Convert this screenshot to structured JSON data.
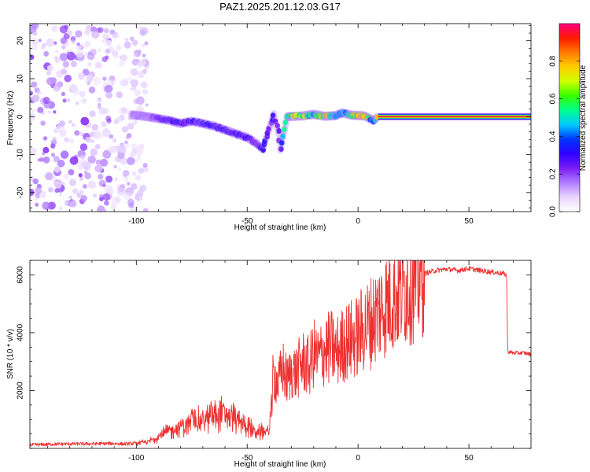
{
  "title": "PAZ1.2025.201.12.03.G17",
  "chart_data": [
    {
      "type": "heatmap",
      "xlabel": "Height of straight line (km)",
      "ylabel": "Frequency (Hz)",
      "xlim": [
        -148,
        78
      ],
      "ylim": [
        -25,
        24.5
      ],
      "xticks": [
        -100,
        -50,
        0,
        50
      ],
      "yticks": [
        -20,
        -10,
        0,
        10,
        20
      ],
      "xtick_labels": [
        "-100",
        "-50",
        "0",
        "50"
      ],
      "ytick_labels": [
        "-20",
        "-10",
        "0",
        "10",
        "20"
      ],
      "colorbar": {
        "label": "Normalized spectral amplitude",
        "range": [
          0,
          1
        ],
        "ticks": [
          0.0,
          0.2,
          0.4,
          0.6,
          0.8
        ],
        "tick_labels": [
          "0.0",
          "0.2",
          "0.4",
          "0.6",
          "0.8"
        ],
        "colors": [
          "#ffffff",
          "#e9d6ff",
          "#b07cff",
          "#7a1cf5",
          "#2d00ff",
          "#0035ff",
          "#00c8ff",
          "#00ff90",
          "#33ff00",
          "#cfff00",
          "#ffd000",
          "#ff7a00",
          "#ff1a00",
          "#ff0080"
        ]
      },
      "noise_region": {
        "x_range": [
          -148,
          -95
        ],
        "y_range": [
          -25,
          24.5
        ],
        "amplitude_range": [
          0.0,
          0.15
        ]
      },
      "signal_track": [
        {
          "x": -102,
          "y": 0.5,
          "amp": 0.13
        },
        {
          "x": -95,
          "y": 0.0,
          "amp": 0.16
        },
        {
          "x": -90,
          "y": -0.5,
          "amp": 0.22
        },
        {
          "x": -85,
          "y": -1.0,
          "amp": 0.26
        },
        {
          "x": -80,
          "y": -1.8,
          "amp": 0.3
        },
        {
          "x": -75,
          "y": -1.2,
          "amp": 0.27
        },
        {
          "x": -70,
          "y": -1.8,
          "amp": 0.3
        },
        {
          "x": -65,
          "y": -2.5,
          "amp": 0.29
        },
        {
          "x": -60,
          "y": -3.5,
          "amp": 0.3
        },
        {
          "x": -55,
          "y": -4.5,
          "amp": 0.28
        },
        {
          "x": -50,
          "y": -5.5,
          "amp": 0.27
        },
        {
          "x": -46,
          "y": -7.0,
          "amp": 0.26
        },
        {
          "x": -43,
          "y": -8.5,
          "amp": 0.3
        },
        {
          "x": -40,
          "y": -3.0,
          "amp": 0.25
        },
        {
          "x": -38,
          "y": 0.5,
          "amp": 0.27
        },
        {
          "x": -36,
          "y": -4.0,
          "amp": 0.25
        },
        {
          "x": -35,
          "y": -8.5,
          "amp": 0.26
        },
        {
          "x": -32,
          "y": 0.0,
          "amp": 0.6
        },
        {
          "x": -25,
          "y": 0.2,
          "amp": 0.65
        },
        {
          "x": -20,
          "y": 0.6,
          "amp": 0.45
        },
        {
          "x": -15,
          "y": 0.1,
          "amp": 0.7
        },
        {
          "x": -10,
          "y": 0.3,
          "amp": 0.5
        },
        {
          "x": -7,
          "y": 1.0,
          "amp": 0.4
        },
        {
          "x": -3,
          "y": 0.4,
          "amp": 0.6
        },
        {
          "x": 3,
          "y": 0.2,
          "amp": 0.75
        },
        {
          "x": 7,
          "y": -1.0,
          "amp": 0.3
        },
        {
          "x": 9,
          "y": 0.0,
          "amp": 0.98
        },
        {
          "x": 30,
          "y": 0.0,
          "amp": 0.99
        },
        {
          "x": 50,
          "y": 0.0,
          "amp": 0.99
        },
        {
          "x": 78,
          "y": 0.0,
          "amp": 0.99
        }
      ]
    },
    {
      "type": "line",
      "xlabel": "Height of straight line (km)",
      "ylabel": "SNR (10 * v/v)",
      "xlim": [
        -148,
        78
      ],
      "ylim": [
        0,
        6500
      ],
      "xticks": [
        -100,
        -50,
        0,
        50
      ],
      "yticks": [
        2000,
        4000,
        6000
      ],
      "xtick_labels": [
        "-100",
        "-50",
        "0",
        "50"
      ],
      "ytick_labels": [
        "2000",
        "4000",
        "6000"
      ],
      "color": "#ee3030",
      "series": [
        {
          "x": [
            -148,
            -135,
            -120,
            -110,
            -105,
            -100,
            -95,
            -90,
            -85,
            -80,
            -75,
            -70,
            -65,
            -60,
            -55,
            -50,
            -45,
            -40,
            -38,
            -36,
            -34,
            -32,
            -30,
            -28,
            -25,
            -22,
            -20,
            -18,
            -15,
            -12,
            -10,
            -8,
            -5,
            -2,
            0,
            3,
            5,
            8,
            10,
            15,
            20,
            25,
            30,
            35,
            40,
            45,
            50,
            55,
            60,
            65,
            67,
            67.5,
            70,
            75,
            78
          ],
          "y": [
            120,
            150,
            160,
            170,
            150,
            180,
            220,
            400,
            600,
            800,
            900,
            1000,
            1100,
            1250,
            1000,
            750,
            550,
            600,
            2600,
            2200,
            2800,
            2300,
            2700,
            2600,
            3000,
            2800,
            3300,
            3100,
            3400,
            3500,
            3300,
            3500,
            3700,
            3800,
            3900,
            4200,
            4300,
            4600,
            4800,
            5200,
            5500,
            5800,
            6050,
            6150,
            6200,
            6150,
            6220,
            6150,
            6100,
            6050,
            6000,
            3350,
            3300,
            3300,
            3250
          ]
        }
      ]
    }
  ]
}
